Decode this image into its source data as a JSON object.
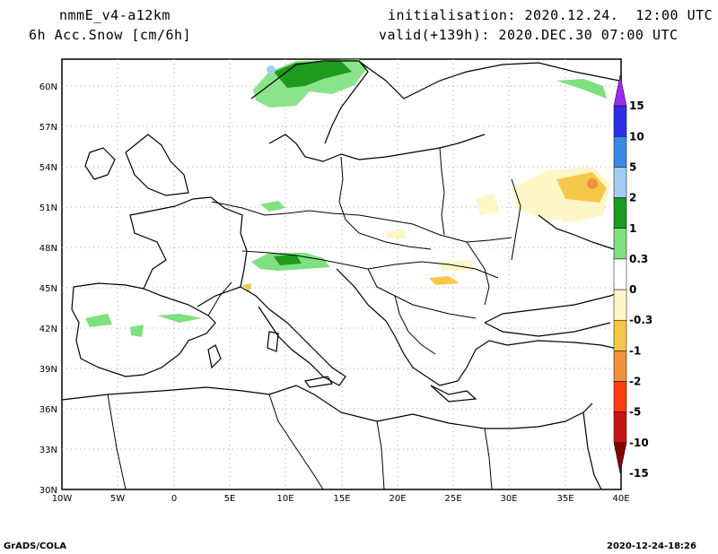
{
  "header": {
    "model": "nmmE_v4-a12km",
    "variable": "6h Acc.Snow [cm/6h]",
    "initialisation": "initialisation: 2020.12.24.  12:00 UTC",
    "valid": "valid(+139h): 2020.DEC.30 07:00 UTC"
  },
  "axes": {
    "x_ticks": [
      "10W",
      "5W",
      "0",
      "5E",
      "10E",
      "15E",
      "20E",
      "25E",
      "30E",
      "35E",
      "40E"
    ],
    "y_ticks": [
      "60N",
      "57N",
      "54N",
      "51N",
      "48N",
      "45N",
      "42N",
      "39N",
      "36N",
      "33N",
      "30N"
    ]
  },
  "colorbar": {
    "labels": [
      "15",
      "10",
      "5",
      "2",
      "1",
      "0.3",
      "0",
      "-0.3",
      "-1",
      "-2",
      "-5",
      "-10",
      "-15"
    ],
    "colors": [
      "#9b2bf0",
      "#2e2ee6",
      "#3c8ae8",
      "#a3ccf5",
      "#1e9a1e",
      "#7ee07e",
      "#ffffff",
      "#fff6c8",
      "#f5c84b",
      "#f0913c",
      "#ff3c14",
      "#c81414",
      "#820000"
    ]
  },
  "footer": {
    "left": "GrADS/COLA",
    "right": "2020-12-24-18:26"
  }
}
